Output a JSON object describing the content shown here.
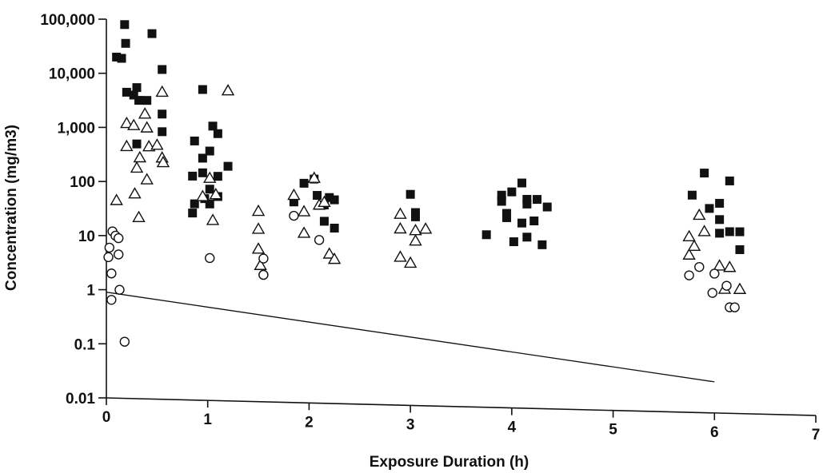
{
  "chart_data": {
    "type": "scatter",
    "title": "",
    "xlabel": "Exposure Duration (h)",
    "ylabel": "Concentration (mg/m3)",
    "xlim": [
      0,
      7
    ],
    "ylim": [
      0.01,
      100000
    ],
    "yscale": "log",
    "xticks": [
      0,
      1,
      2,
      3,
      4,
      5,
      6,
      7
    ],
    "xtick_labels": [
      "0",
      "1",
      "2",
      "3",
      "4",
      "5",
      "6",
      "7"
    ],
    "yticks": [
      0.01,
      0.1,
      1,
      10,
      100,
      1000,
      10000,
      100000
    ],
    "ytick_labels": [
      "0.01",
      "0.1",
      "1",
      "10",
      "100",
      "1,000",
      "10,000",
      "100,000"
    ],
    "grid": false,
    "legend": "none",
    "series": [
      {
        "marker": "filled-square",
        "color": "#111111",
        "points": [
          [
            0.1,
            20000
          ],
          [
            0.15,
            19000
          ],
          [
            0.18,
            80000
          ],
          [
            0.19,
            36000
          ],
          [
            0.2,
            4500
          ],
          [
            0.27,
            4000
          ],
          [
            0.3,
            5500
          ],
          [
            0.32,
            3200
          ],
          [
            0.3,
            500
          ],
          [
            0.4,
            3200
          ],
          [
            0.45,
            55000
          ],
          [
            0.55,
            12000
          ],
          [
            0.55,
            1800
          ],
          [
            0.55,
            850
          ],
          [
            0.85,
            27
          ],
          [
            0.87,
            40
          ],
          [
            0.85,
            130
          ],
          [
            0.87,
            580
          ],
          [
            0.95,
            5200
          ],
          [
            0.95,
            280
          ],
          [
            0.95,
            150
          ],
          [
            0.97,
            50
          ],
          [
            1.02,
            380
          ],
          [
            1.02,
            75
          ],
          [
            1.02,
            40
          ],
          [
            1.05,
            1100
          ],
          [
            1.1,
            800
          ],
          [
            1.1,
            130
          ],
          [
            1.1,
            55
          ],
          [
            1.2,
            200
          ],
          [
            1.85,
            45
          ],
          [
            1.95,
            100
          ],
          [
            2.05,
            120
          ],
          [
            2.08,
            60
          ],
          [
            2.15,
            40
          ],
          [
            2.15,
            20
          ],
          [
            2.2,
            55
          ],
          [
            2.25,
            50
          ],
          [
            2.25,
            15
          ],
          [
            3.0,
            65
          ],
          [
            3.05,
            30
          ],
          [
            3.05,
            25
          ],
          [
            3.75,
            12
          ],
          [
            3.9,
            65
          ],
          [
            3.9,
            50
          ],
          [
            3.95,
            30
          ],
          [
            3.95,
            25
          ],
          [
            4.0,
            75
          ],
          [
            4.02,
            9
          ],
          [
            4.1,
            110
          ],
          [
            4.15,
            55
          ],
          [
            4.15,
            45
          ],
          [
            4.1,
            20
          ],
          [
            4.15,
            11
          ],
          [
            4.25,
            55
          ],
          [
            4.22,
            22
          ],
          [
            4.3,
            8
          ],
          [
            4.35,
            40
          ],
          [
            5.78,
            70
          ],
          [
            5.9,
            180
          ],
          [
            5.95,
            40
          ],
          [
            6.05,
            50
          ],
          [
            6.05,
            25
          ],
          [
            6.05,
            14
          ],
          [
            6.15,
            130
          ],
          [
            6.15,
            15
          ],
          [
            6.25,
            15
          ],
          [
            6.25,
            7
          ]
        ]
      },
      {
        "marker": "open-triangle",
        "color": "#111111",
        "points": [
          [
            0.1,
            45
          ],
          [
            0.2,
            1200
          ],
          [
            0.2,
            450
          ],
          [
            0.27,
            1100
          ],
          [
            0.28,
            60
          ],
          [
            0.3,
            180
          ],
          [
            0.32,
            22
          ],
          [
            0.33,
            280
          ],
          [
            0.38,
            1800
          ],
          [
            0.4,
            1000
          ],
          [
            0.4,
            110
          ],
          [
            0.42,
            450
          ],
          [
            0.5,
            480
          ],
          [
            0.55,
            4600
          ],
          [
            0.55,
            280
          ],
          [
            0.56,
            230
          ],
          [
            0.95,
            55
          ],
          [
            1.02,
            120
          ],
          [
            1.05,
            20
          ],
          [
            1.08,
            60
          ],
          [
            1.2,
            5000
          ],
          [
            1.5,
            30
          ],
          [
            1.5,
            14
          ],
          [
            1.5,
            6
          ],
          [
            1.52,
            3
          ],
          [
            1.85,
            60
          ],
          [
            1.95,
            30
          ],
          [
            1.95,
            12
          ],
          [
            2.05,
            125
          ],
          [
            2.1,
            40
          ],
          [
            2.15,
            45
          ],
          [
            2.2,
            5
          ],
          [
            2.25,
            4
          ],
          [
            2.9,
            28
          ],
          [
            2.9,
            15
          ],
          [
            2.9,
            4.5
          ],
          [
            3.0,
            3.5
          ],
          [
            3.05,
            14
          ],
          [
            3.05,
            9
          ],
          [
            3.15,
            15
          ],
          [
            5.75,
            12
          ],
          [
            5.75,
            5.5
          ],
          [
            5.8,
            8
          ],
          [
            5.85,
            30
          ],
          [
            5.9,
            15
          ],
          [
            6.05,
            3.5
          ],
          [
            6.1,
            1.3
          ],
          [
            6.15,
            3.3
          ],
          [
            6.25,
            1.3
          ]
        ]
      },
      {
        "marker": "open-circle",
        "color": "#111111",
        "points": [
          [
            0.02,
            4
          ],
          [
            0.03,
            6
          ],
          [
            0.05,
            2
          ],
          [
            0.05,
            0.65
          ],
          [
            0.06,
            12
          ],
          [
            0.09,
            10
          ],
          [
            0.12,
            9
          ],
          [
            0.12,
            4.5
          ],
          [
            0.13,
            1
          ],
          [
            0.18,
            0.11
          ],
          [
            1.02,
            4
          ],
          [
            1.55,
            2
          ],
          [
            1.55,
            4
          ],
          [
            1.55,
            2
          ],
          [
            1.85,
            25
          ],
          [
            2.1,
            9
          ],
          [
            5.75,
            2.3
          ],
          [
            5.85,
            3.3
          ],
          [
            5.98,
            1.1
          ],
          [
            6.0,
            2.5
          ],
          [
            6.12,
            1.5
          ],
          [
            6.15,
            0.6
          ],
          [
            6.2,
            0.6
          ]
        ]
      }
    ],
    "lines": [
      {
        "style": "solid",
        "color": "#111111",
        "points": [
          [
            0,
            0.9
          ],
          [
            6,
            0.025
          ]
        ]
      }
    ]
  }
}
